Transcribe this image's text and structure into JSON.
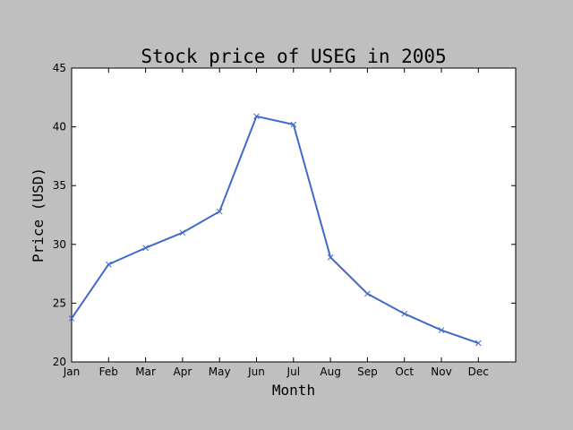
{
  "chart_data": {
    "type": "line",
    "title": "Stock price of USEG in 2005",
    "xlabel": "Month",
    "ylabel": "Price (USD)",
    "categories": [
      "Jan",
      "Feb",
      "Mar",
      "Apr",
      "May",
      "Jun",
      "Jul",
      "Aug",
      "Sep",
      "Oct",
      "Nov",
      "Dec"
    ],
    "series": [
      {
        "values": [
          23.7,
          28.3,
          29.7,
          31.0,
          32.8,
          40.9,
          40.2,
          28.9,
          25.8,
          24.1,
          22.7,
          21.6
        ],
        "color": "#4169c8",
        "marker": "x"
      }
    ],
    "ylim": [
      20,
      45
    ],
    "yticks": [
      "20",
      "25",
      "30",
      "35",
      "40",
      "45"
    ],
    "grid": false,
    "legend": "none"
  }
}
